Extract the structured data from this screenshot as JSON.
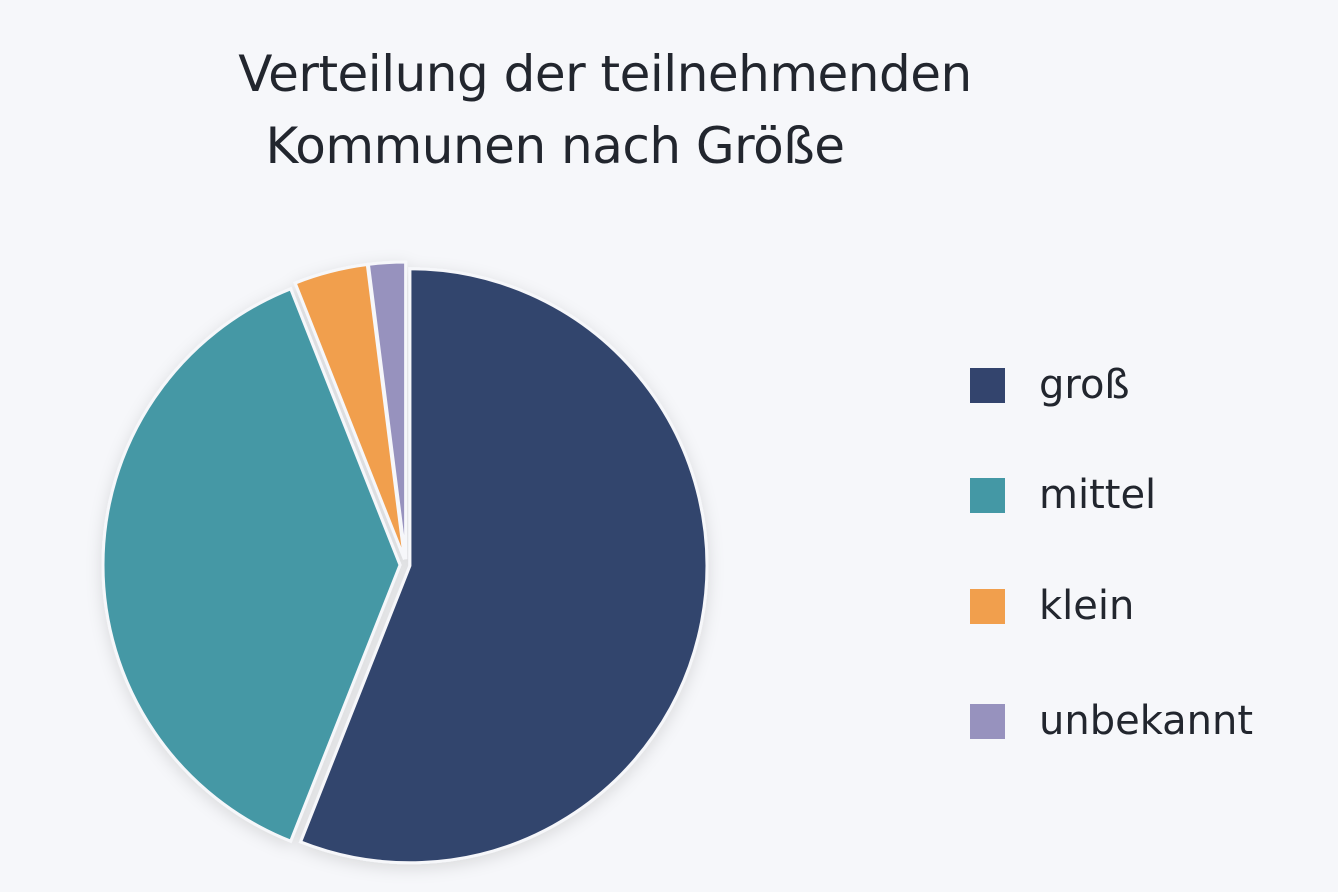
{
  "title_lines": [
    "Verteilung der teilnehmenden",
    "Kommunen nach Größe"
  ],
  "legend": [
    {
      "label": "groß",
      "color": "#33446d"
    },
    {
      "label": "mittel",
      "color": "#4498a5"
    },
    {
      "label": "klein",
      "color": "#f19f4d"
    },
    {
      "label": "unbekannt",
      "color": "#9792be"
    }
  ],
  "chart_data": {
    "type": "pie",
    "title": "Verteilung der teilnehmenden Kommunen nach Größe",
    "categories": [
      "groß",
      "mittel",
      "klein",
      "unbekannt"
    ],
    "values": [
      56,
      38,
      4,
      2
    ],
    "colors": [
      "#33446d",
      "#4498a5",
      "#f19f4d",
      "#9792be"
    ],
    "unit": "%",
    "start_angle": "12 o'clock, clockwise",
    "legend_position": "right"
  }
}
